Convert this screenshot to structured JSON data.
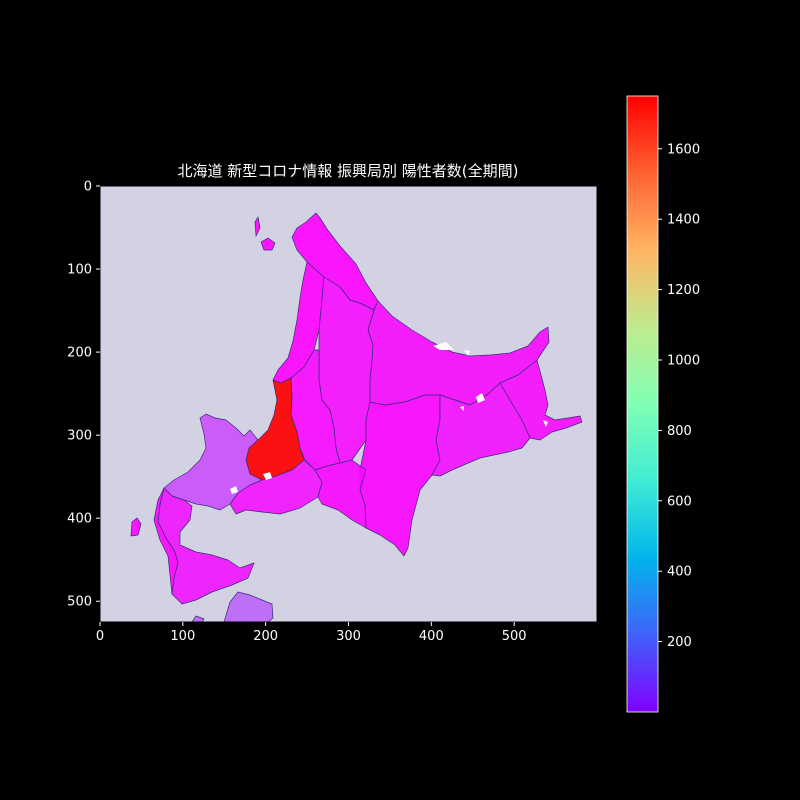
{
  "chart_data": {
    "type": "heatmap",
    "title": "北海道 新型コロナ情報 振興局別 陽性者数(全期間)",
    "xlabel": "",
    "ylabel": "",
    "xlim": [
      0,
      600
    ],
    "ylim": [
      525,
      0
    ],
    "xticks": [
      0,
      100,
      200,
      300,
      400,
      500
    ],
    "yticks": [
      0,
      100,
      200,
      300,
      400,
      500
    ],
    "colorbar": {
      "colormap": "rainbow",
      "min": 0,
      "max": 1750,
      "ticks": [
        200,
        400,
        600,
        800,
        1000,
        1200,
        1400,
        1600
      ]
    },
    "background_color": "#d2d2e2",
    "regions": [
      {
        "id": "soya",
        "value": 10
      },
      {
        "id": "rumoi",
        "value": 8
      },
      {
        "id": "kamikawa",
        "value": 35
      },
      {
        "id": "okhotsk",
        "value": 30
      },
      {
        "id": "sorachi",
        "value": 25
      },
      {
        "id": "ishikari",
        "value": 1750
      },
      {
        "id": "shiribeshi",
        "value": 180
      },
      {
        "id": "iburi",
        "value": 45
      },
      {
        "id": "hidaka",
        "value": 20
      },
      {
        "id": "tokachi",
        "value": 15
      },
      {
        "id": "kushiro",
        "value": 40
      },
      {
        "id": "nemuro",
        "value": 30
      },
      {
        "id": "oshima",
        "value": 50
      },
      {
        "id": "hiyama",
        "value": 15
      },
      {
        "id": "aomori_fragment",
        "value": 230
      }
    ]
  }
}
